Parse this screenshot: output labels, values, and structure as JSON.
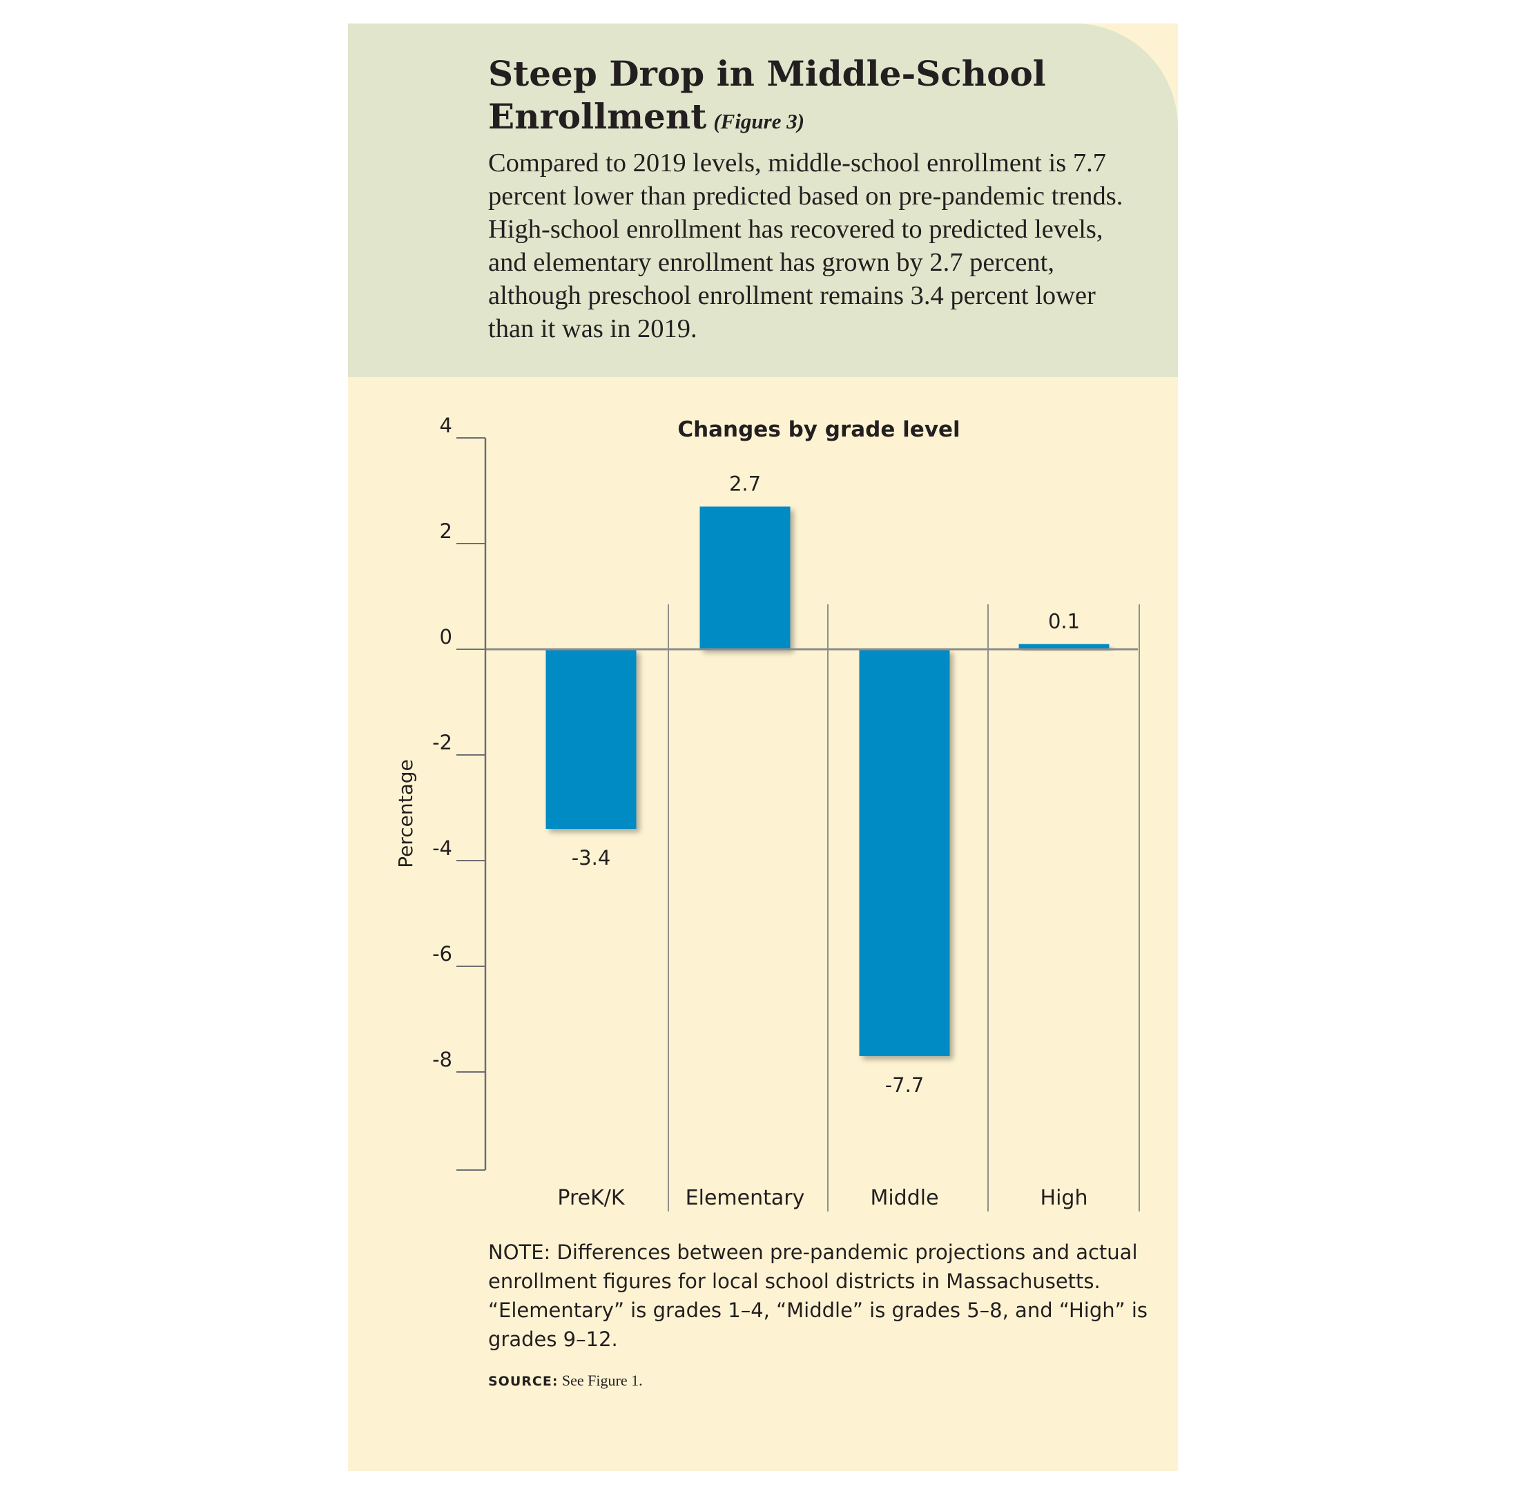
{
  "header": {
    "title": "Steep Drop in Middle-School Enrollment",
    "figure_ref": "(Figure 3)",
    "description": "Compared to 2019 levels, middle-school enrollment is 7.7 percent lower than predicted based on pre-pandemic trends. High-school enrollment has recovered to predicted levels, and elementary enrollment has grown by 2.7 percent, although preschool enrollment remains 3.4 percent lower than it was in 2019."
  },
  "colors": {
    "header_bg": "#e1e5cb",
    "panel_bg": "#fdf3d2",
    "bar": "#008bc5",
    "text": "#231f20",
    "rule": "#6d6e71"
  },
  "chart_data": {
    "type": "bar",
    "title": "Changes by grade level",
    "ylabel": "Percentage",
    "xlabel": "",
    "categories": [
      "PreK/K",
      "Elementary",
      "Middle",
      "High"
    ],
    "values": [
      -3.4,
      2.7,
      -7.7,
      0.1
    ],
    "data_labels": [
      "-3.4",
      "2.7",
      "-7.7",
      "0.1"
    ],
    "yticks": [
      4,
      2,
      0,
      -2,
      -4,
      -6,
      -8
    ],
    "ytick_labels": [
      "4",
      "2",
      "0",
      "-2",
      "-4",
      "-6",
      "-8"
    ],
    "ylim": [
      -10,
      4
    ],
    "grid": false,
    "legend": "none"
  },
  "note": "NOTE: Differences between pre-pandemic projections and actual enrollment figures for local school districts in Massachusetts. “Elementary” is grades 1–4, “Middle” is grades 5–8, and “High” is grades 9–12.",
  "source": {
    "label": "SOURCE:",
    "text": "See Figure 1."
  }
}
